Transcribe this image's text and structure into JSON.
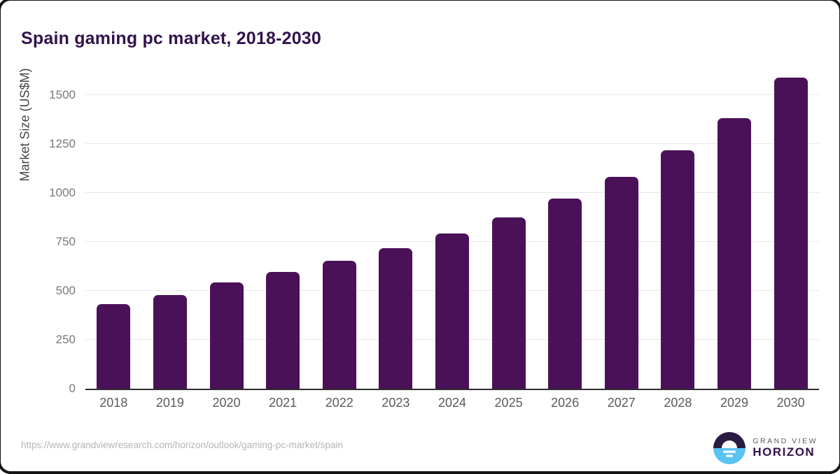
{
  "title": "Spain gaming pc market, 2018-2030",
  "chart_data": {
    "type": "bar",
    "title": "Spain gaming pc market, 2018-2030",
    "categories": [
      "2018",
      "2019",
      "2020",
      "2021",
      "2022",
      "2023",
      "2024",
      "2025",
      "2026",
      "2027",
      "2028",
      "2029",
      "2030"
    ],
    "values": [
      432,
      479,
      544,
      596,
      654,
      718,
      793,
      875,
      971,
      1081,
      1218,
      1383,
      1591
    ],
    "xlabel": "",
    "ylabel": "Market Size (US$M)",
    "ylim": [
      0,
      1628
    ],
    "yticks": [
      0,
      250,
      500,
      750,
      1000,
      1250,
      1500
    ],
    "grid": true,
    "legend": "none",
    "bar_color": "#4a1158"
  },
  "colors": {
    "title": "#33124d",
    "bar": "#4a1158",
    "gridline": "#e8e8e8",
    "axis_line": "#2d2d2d",
    "tick_label": "#787878",
    "x_label": "#5a5a5a",
    "url": "#b4b4b4",
    "logo_dark": "#2b1b42",
    "logo_blue": "#5ac3f2"
  },
  "footer": {
    "source_url": "https://www.grandviewresearch.com/horizon/outlook/gaming-pc-market/spain",
    "logo": {
      "line1": "GRAND VIEW",
      "line2": "HORIZON"
    }
  }
}
